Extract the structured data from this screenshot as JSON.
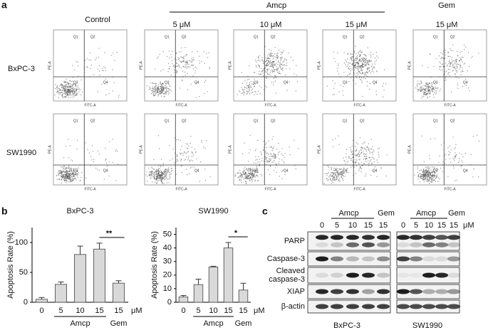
{
  "panel_labels": [
    "a",
    "b",
    "c"
  ],
  "panel_a": {
    "group_headers": [
      "Amcp",
      "Gem"
    ],
    "column_headers": [
      "Control",
      "5 μM",
      "10 μM",
      "15 μM",
      "15 μM"
    ],
    "rows": [
      "BxPC-3",
      "SW1990"
    ],
    "axis_labels": {
      "x": "FITC-A",
      "y": "PE-A"
    },
    "quadrants": [
      "Q1",
      "Q2",
      "Q3",
      "Q4"
    ]
  },
  "chart_data": [
    {
      "type": "bar",
      "title": "BxPC-3",
      "y_label": "Apoptosis Rate (%)",
      "categories": [
        "0",
        "5",
        "10",
        "15",
        "15"
      ],
      "values": [
        5,
        30,
        80,
        89,
        32
      ],
      "errors": [
        3,
        4,
        14,
        10,
        4
      ],
      "color": "#d9d9d9",
      "ylim": [
        0,
        125
      ],
      "yticks": [
        0,
        50,
        100
      ],
      "x_groups": [
        "Amcp",
        "Gem"
      ],
      "x_unit": "μM",
      "significance": "**"
    },
    {
      "type": "bar",
      "title": "SW1990",
      "y_label": "Apoptosis Rate (%)",
      "categories": [
        "0",
        "5",
        "10",
        "15",
        "15"
      ],
      "values": [
        4,
        13,
        26,
        40,
        9
      ],
      "errors": [
        1,
        4,
        0.5,
        4,
        5
      ],
      "color": "#d9d9d9",
      "ylim": [
        0,
        55
      ],
      "yticks": [
        0,
        10,
        20,
        30,
        40,
        50
      ],
      "x_groups": [
        "Amcp",
        "Gem"
      ],
      "x_unit": "μM",
      "significance": "*"
    }
  ],
  "panel_c": {
    "group_headers": [
      "Amcp",
      "Gem"
    ],
    "lanes": [
      "0",
      "5",
      "10",
      "15",
      "15"
    ],
    "unit": "μM",
    "rows": [
      [
        "PARP"
      ],
      [
        "Caspase-3"
      ],
      [
        "Cleaved",
        "caspase-3"
      ],
      [
        "XIAP"
      ],
      [
        "β-actin"
      ]
    ],
    "cell_lines": [
      "BxPC-3",
      "SW1990"
    ]
  }
}
